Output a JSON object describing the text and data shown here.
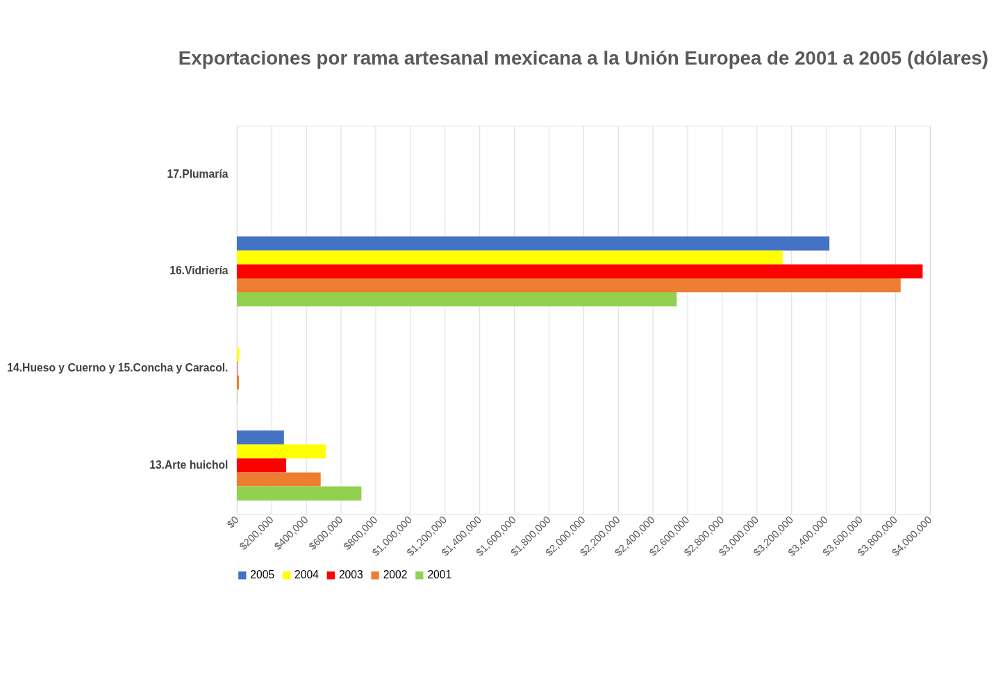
{
  "chart_data": {
    "type": "bar",
    "orientation": "horizontal",
    "title": "Exportaciones por rama artesanal mexicana a la Unión Europea de 2001 a 2005 (dólares)",
    "categories": [
      "17.Plumaría",
      "16.Vidriería",
      "14.Hueso y Cuerno y 15.Concha y Caracol.",
      "13.Arte huichol"
    ],
    "series": [
      {
        "name": "2005",
        "color": "#4472c4",
        "values": [
          0,
          3420000,
          0,
          272000
        ]
      },
      {
        "name": "2004",
        "color": "#ffff00",
        "values": [
          0,
          3150000,
          14000,
          513000
        ]
      },
      {
        "name": "2003",
        "color": "#ff0000",
        "values": [
          0,
          3958000,
          3000,
          285000
        ]
      },
      {
        "name": "2002",
        "color": "#ed7d31",
        "values": [
          0,
          3831000,
          12000,
          484000
        ]
      },
      {
        "name": "2001",
        "color": "#92d050",
        "values": [
          0,
          2539000,
          3000,
          719000
        ]
      }
    ],
    "xlim": [
      0,
      4000000
    ],
    "xticks": [
      {
        "value": 0,
        "label": "$0"
      },
      {
        "value": 200000,
        "label": "$200,000"
      },
      {
        "value": 400000,
        "label": "$400,000"
      },
      {
        "value": 600000,
        "label": "$600,000"
      },
      {
        "value": 800000,
        "label": "$800,000"
      },
      {
        "value": 1000000,
        "label": "$1,000,000"
      },
      {
        "value": 1200000,
        "label": "$1,200,000"
      },
      {
        "value": 1400000,
        "label": "$1,400,000"
      },
      {
        "value": 1600000,
        "label": "$1,600,000"
      },
      {
        "value": 1800000,
        "label": "$1,800,000"
      },
      {
        "value": 2000000,
        "label": "$2,000,000"
      },
      {
        "value": 2200000,
        "label": "$2,200,000"
      },
      {
        "value": 2400000,
        "label": "$2,400,000"
      },
      {
        "value": 2600000,
        "label": "$2,600,000"
      },
      {
        "value": 2800000,
        "label": "$2,800,000"
      },
      {
        "value": 3000000,
        "label": "$3,000,000"
      },
      {
        "value": 3200000,
        "label": "$3,200,000"
      },
      {
        "value": 3400000,
        "label": "$3,400,000"
      },
      {
        "value": 3600000,
        "label": "$3,600,000"
      },
      {
        "value": 3800000,
        "label": "$3,800,000"
      },
      {
        "value": 4000000,
        "label": "$4,000,000"
      }
    ],
    "grid": "x",
    "legend": "bottom"
  }
}
